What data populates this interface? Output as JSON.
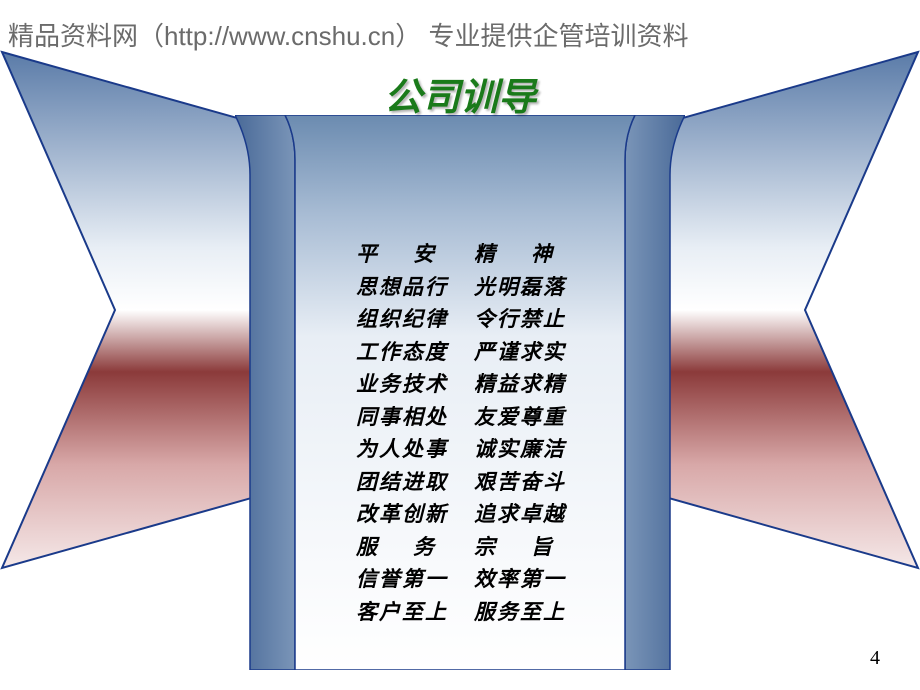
{
  "watermark": "精品资料网（http://www.cnshu.cn） 专业提供企管培训资料",
  "title": "公司训导",
  "page_number": "4",
  "colors": {
    "title_color": "#1a7a1a",
    "watermark_color": "#6b6b6b",
    "border_color": "#1a3a8a",
    "gradient_top": "#5a7ba8",
    "gradient_mid_light": "#e8eef5",
    "gradient_red_dark": "#8b3a3a",
    "gradient_red_light": "#d8a8a8",
    "scroll_top": "#6b8bb0",
    "scroll_bottom": "#ffffff"
  },
  "content_rows": [
    {
      "left": "平 安",
      "right": "精 神",
      "spaced": true
    },
    {
      "left": "思想品行",
      "right": "光明磊落",
      "spaced": false
    },
    {
      "left": "组织纪律",
      "right": "令行禁止",
      "spaced": false
    },
    {
      "left": "工作态度",
      "right": "严谨求实",
      "spaced": false
    },
    {
      "left": "业务技术",
      "right": "精益求精",
      "spaced": false
    },
    {
      "left": "同事相处",
      "right": "友爱尊重",
      "spaced": false
    },
    {
      "left": "为人处事",
      "right": "诚实廉洁",
      "spaced": false
    },
    {
      "left": "团结进取",
      "right": "艰苦奋斗",
      "spaced": false
    },
    {
      "left": "改革创新",
      "right": "追求卓越",
      "spaced": false
    },
    {
      "left": "服 务",
      "right": "宗 旨",
      "spaced": true
    },
    {
      "left": "信誉第一",
      "right": "效率第一",
      "spaced": false
    },
    {
      "left": "客户至上",
      "right": "服务至上",
      "spaced": false
    }
  ]
}
